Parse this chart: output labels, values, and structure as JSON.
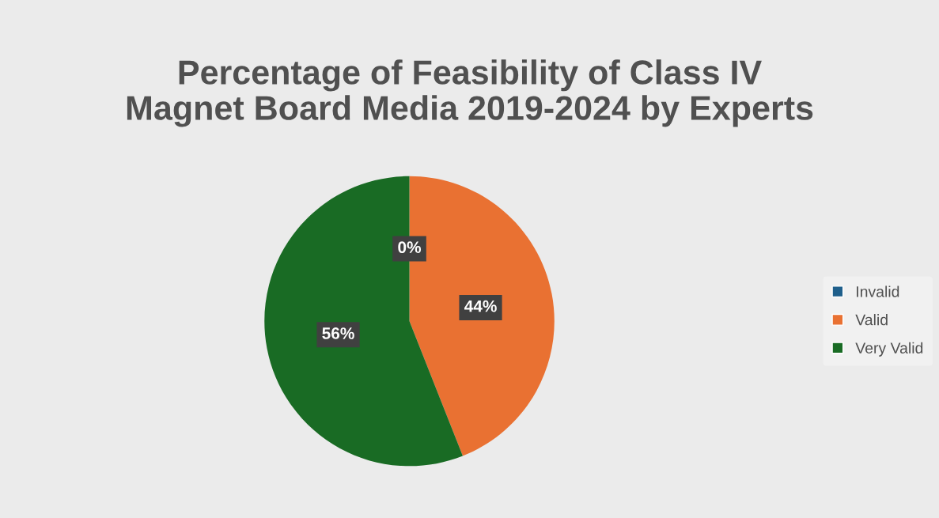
{
  "chart_data": {
    "type": "pie",
    "title": "Percentage of Feasibility of Class IV\nMagnet Board Media 2019-2024 by Experts",
    "categories": [
      "Invalid",
      "Valid",
      "Very Valid"
    ],
    "values": [
      0,
      44,
      56
    ],
    "colors": [
      "#1f5f8b",
      "#e97132",
      "#196b24"
    ],
    "value_labels": [
      "0%",
      "44%",
      "56%"
    ],
    "legend": "right"
  }
}
